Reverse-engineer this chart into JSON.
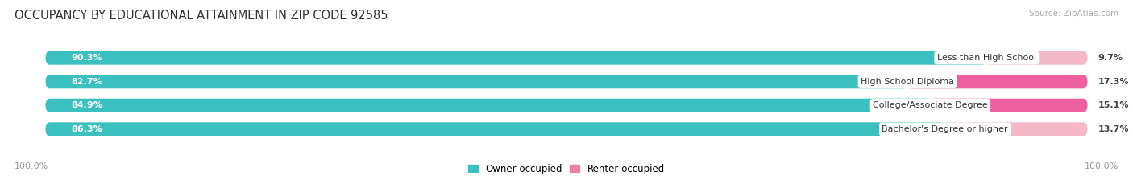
{
  "title": "OCCUPANCY BY EDUCATIONAL ATTAINMENT IN ZIP CODE 92585",
  "source": "Source: ZipAtlas.com",
  "categories": [
    "Less than High School",
    "High School Diploma",
    "College/Associate Degree",
    "Bachelor's Degree or higher"
  ],
  "owner_pct": [
    90.3,
    82.7,
    84.9,
    86.3
  ],
  "renter_pct": [
    9.7,
    17.3,
    15.1,
    13.7
  ],
  "owner_color": "#3BBFBF",
  "renter_color_0": "#F5B8C8",
  "renter_color_1": "#F060A0",
  "renter_color_2": "#F060A0",
  "renter_color_3": "#F5B8C8",
  "renter_colors": [
    "#F5B8C8",
    "#EE5FA0",
    "#EE5FA0",
    "#F5B8C8"
  ],
  "bar_bg_color": "#E8ECED",
  "title_fontsize": 10.5,
  "source_fontsize": 7.5,
  "label_fontsize": 8,
  "pct_fontsize": 8,
  "axis_label_fontsize": 8,
  "background_color": "#FFFFFF",
  "x_left_label": "100.0%",
  "x_right_label": "100.0%"
}
